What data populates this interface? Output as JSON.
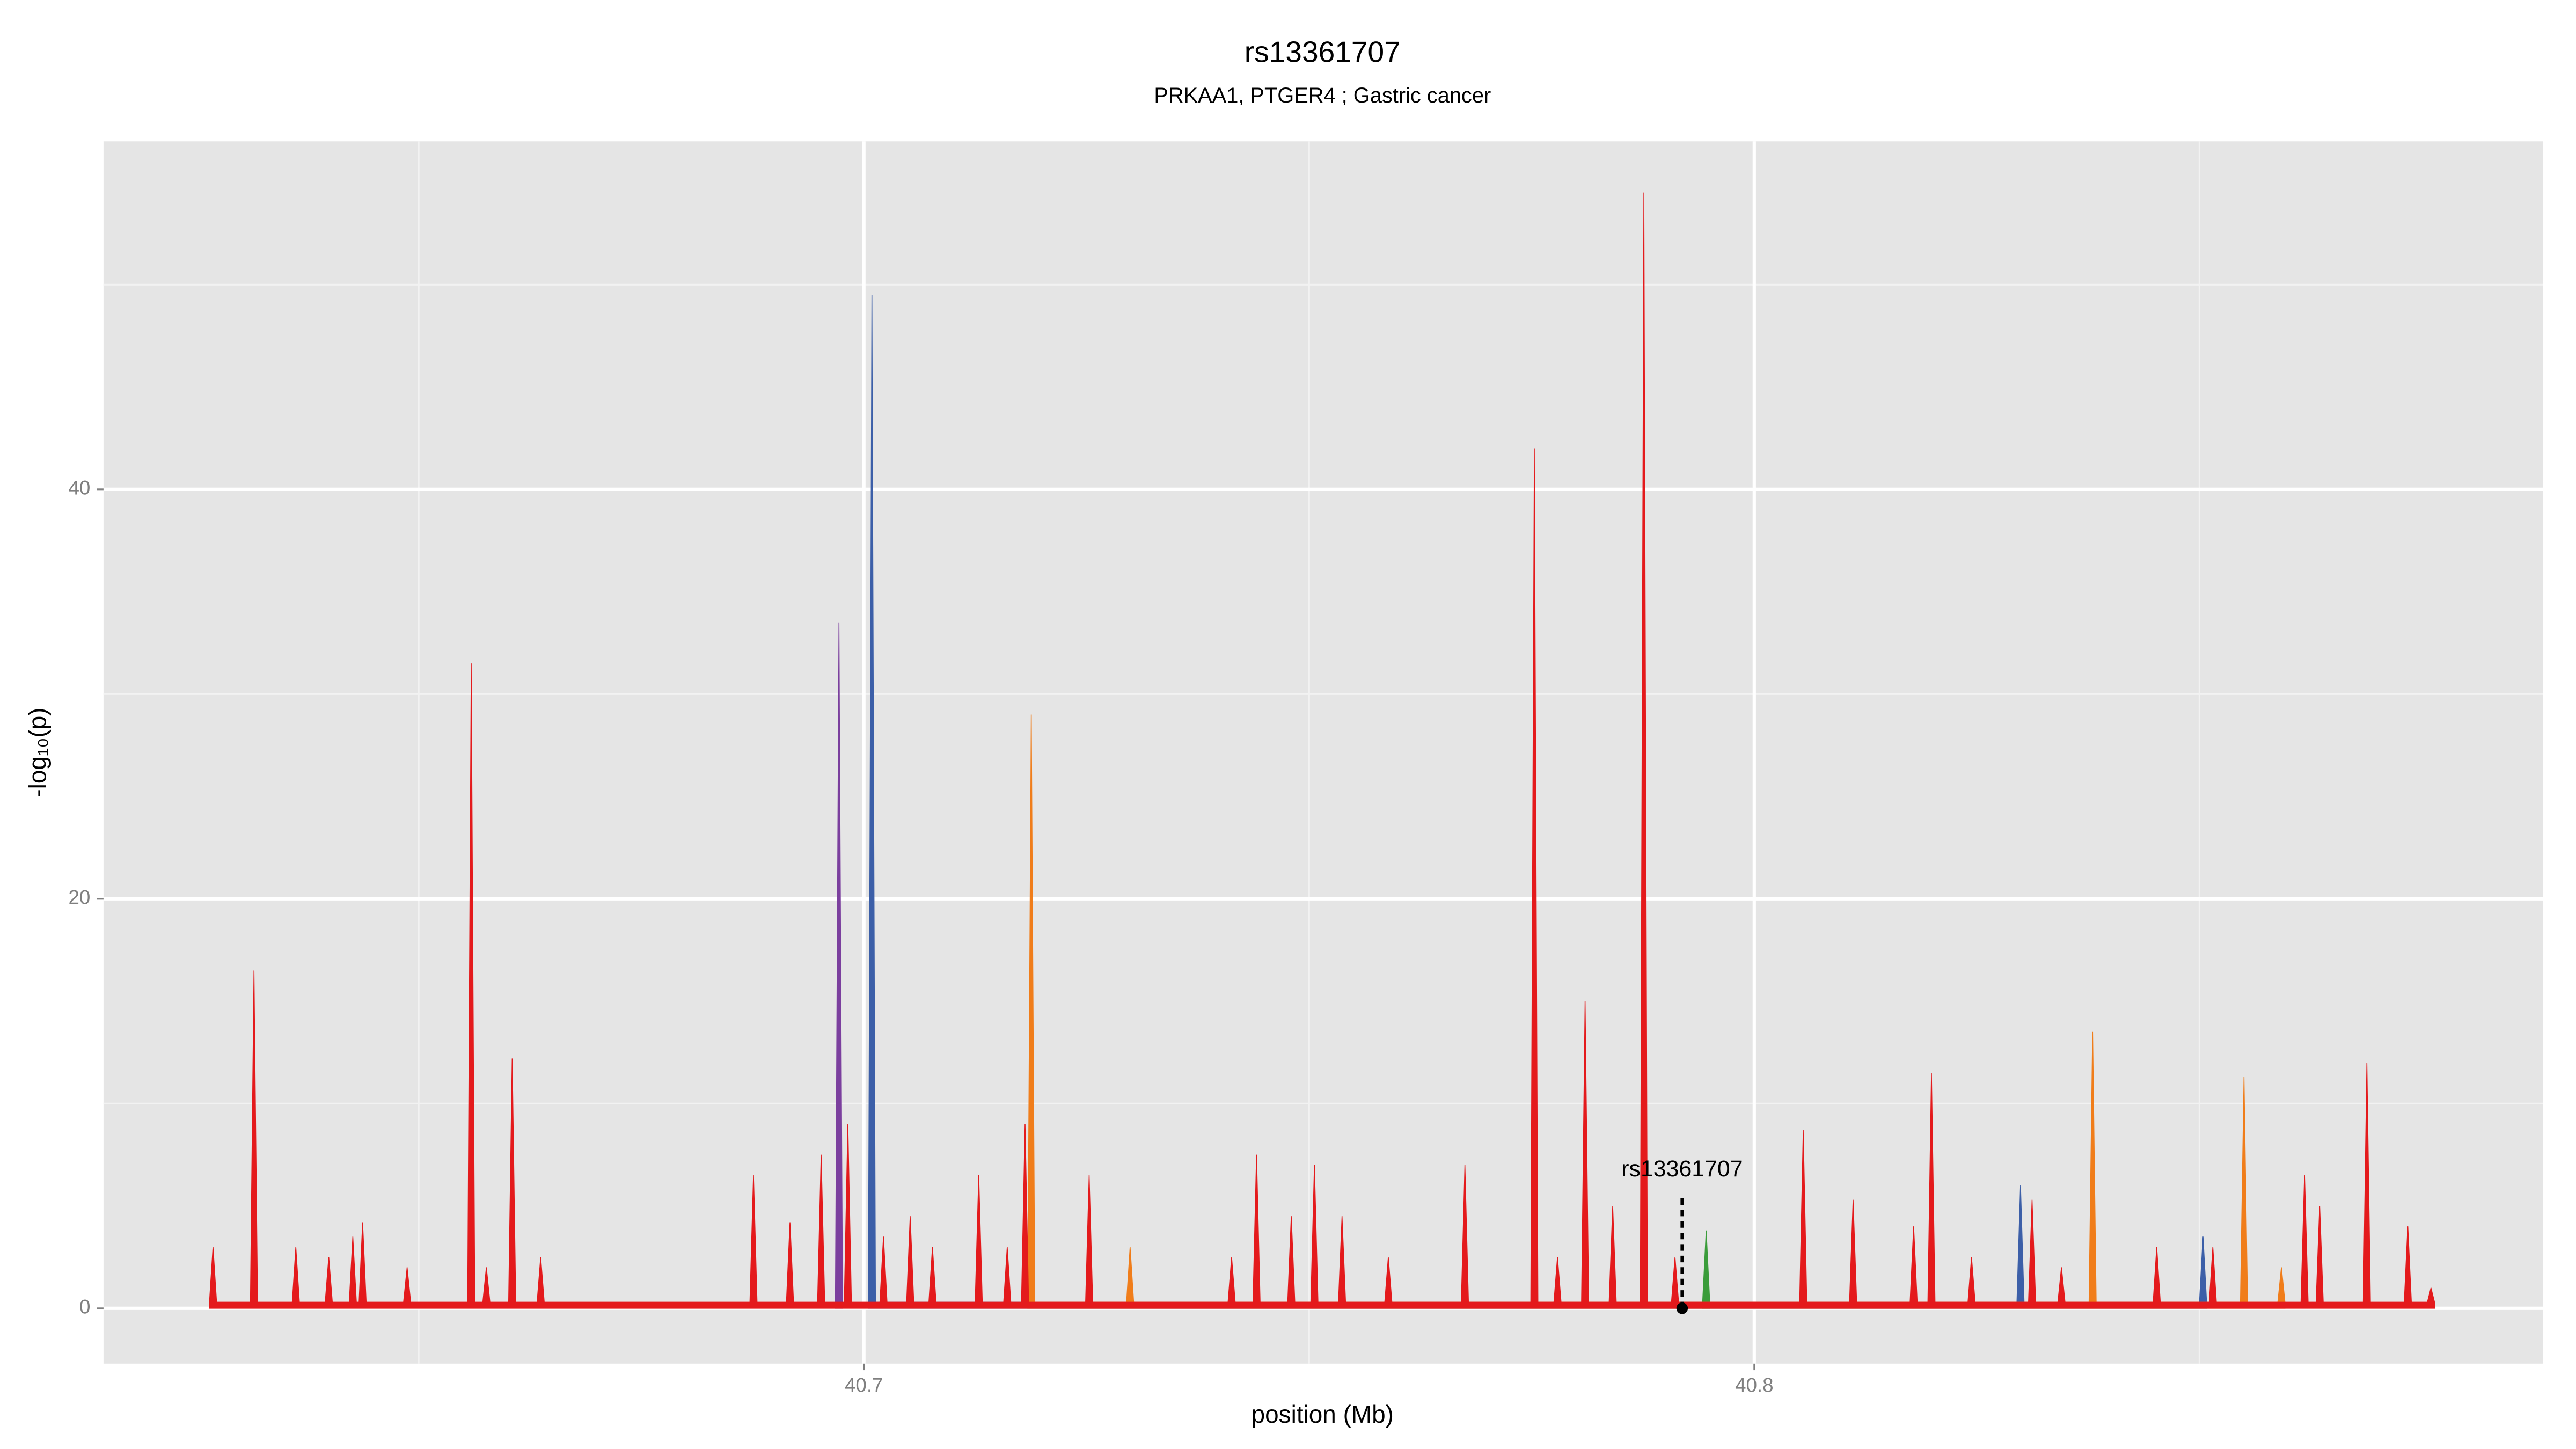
{
  "chart_data": {
    "type": "area",
    "title": "rs13361707",
    "subtitle": "PRKAA1, PTGER4 ; Gastric cancer",
    "x_label": "position (Mb)",
    "y_label": "-log₁₀(p)",
    "xlim": [
      40.6146,
      40.8886
    ],
    "ylim": [
      -2.7,
      57
    ],
    "xticks": [
      40.7,
      40.8
    ],
    "yticks": [
      0,
      20,
      40
    ],
    "x_minor_grid": [
      40.65,
      40.75,
      40.85
    ],
    "y_minor_grid": [
      10,
      30,
      50
    ],
    "grid": true,
    "annotation": {
      "label": "rs13361707",
      "x": 40.7919
    },
    "series": [
      {
        "color": "#7b3f9e",
        "x": [
          40.6968,
          40.6972,
          40.6976
        ],
        "values": [
          0.3,
          33.5,
          0.3
        ]
      },
      {
        "color": "#3c5fa8",
        "x": [
          40.7005,
          40.7009,
          40.7013,
          40.8295,
          40.8299,
          40.8303,
          40.85,
          40.8504,
          40.8508
        ],
        "values": [
          0.3,
          49.5,
          0.3,
          0.3,
          6,
          0.3,
          0.3,
          3.5,
          0.3
        ]
      },
      {
        "color": "#3a9c3a",
        "x": [
          40.7942,
          40.7946,
          40.795
        ],
        "values": [
          0.3,
          3.8,
          0.3
        ]
      },
      {
        "color": "#f07d1a",
        "x": [
          40.7184,
          40.7188,
          40.7192,
          40.7295,
          40.7299,
          40.7303,
          40.8376,
          40.838,
          40.8384,
          40.8546,
          40.855,
          40.8554,
          40.8588,
          40.8592,
          40.8596
        ],
        "values": [
          0.3,
          29,
          0.3,
          0.3,
          3,
          0.3,
          0.3,
          13.5,
          0.3,
          0.3,
          11.3,
          0.3,
          0.3,
          2,
          0.3
        ]
      },
      {
        "color": "#e41a1c",
        "x": [
          40.6265,
          40.6269,
          40.6273,
          40.6311,
          40.6315,
          40.6319,
          40.6358,
          40.6362,
          40.6366,
          40.6395,
          40.6399,
          40.6403,
          40.6422,
          40.6426,
          40.643,
          40.6433,
          40.6437,
          40.6441,
          40.6483,
          40.6487,
          40.6491,
          40.6555,
          40.6559,
          40.6563,
          40.6572,
          40.6576,
          40.658,
          40.6601,
          40.6605,
          40.6609,
          40.6633,
          40.6637,
          40.6641,
          40.6872,
          40.6876,
          40.688,
          40.6913,
          40.6917,
          40.6921,
          40.6948,
          40.6952,
          40.6956,
          40.6978,
          40.6982,
          40.6986,
          40.7018,
          40.7022,
          40.7026,
          40.7048,
          40.7052,
          40.7056,
          40.7073,
          40.7077,
          40.7081,
          40.7125,
          40.7129,
          40.7133,
          40.7157,
          40.7161,
          40.7165,
          40.7177,
          40.7181,
          40.7185,
          40.7249,
          40.7253,
          40.7257,
          40.7409,
          40.7413,
          40.7417,
          40.7437,
          40.7441,
          40.7445,
          40.7476,
          40.748,
          40.7484,
          40.7502,
          40.7506,
          40.751,
          40.7533,
          40.7537,
          40.7541,
          40.7585,
          40.7589,
          40.7593,
          40.7671,
          40.7675,
          40.7679,
          40.7749,
          40.7753,
          40.7757,
          40.7775,
          40.7779,
          40.7783,
          40.7806,
          40.781,
          40.7814,
          40.7837,
          40.7841,
          40.7845,
          40.7872,
          40.7876,
          40.788,
          40.7907,
          40.7911,
          40.7915,
          40.8051,
          40.8055,
          40.8059,
          40.8107,
          40.8111,
          40.8115,
          40.8175,
          40.8179,
          40.8183,
          40.8195,
          40.8199,
          40.8203,
          40.824,
          40.8244,
          40.8248,
          40.8308,
          40.8312,
          40.8316,
          40.8341,
          40.8345,
          40.8349,
          40.8448,
          40.8452,
          40.8456,
          40.8511,
          40.8515,
          40.8519,
          40.8614,
          40.8618,
          40.8622,
          40.8631,
          40.8635,
          40.8639,
          40.8684,
          40.8688,
          40.8692,
          40.873,
          40.8734,
          40.8738,
          40.8756,
          40.876,
          40.8764
        ],
        "values": [
          0.3,
          3,
          0.3,
          0.3,
          16.5,
          0.3,
          0.3,
          3,
          0.3,
          0.3,
          2.5,
          0.3,
          0.3,
          3.5,
          0.3,
          0.3,
          4.2,
          0.3,
          0.3,
          2,
          0.3,
          0.3,
          31.5,
          0.3,
          0.3,
          2,
          0.3,
          0.3,
          12.2,
          0.3,
          0.3,
          2.5,
          0.3,
          0.3,
          6.5,
          0.3,
          0.3,
          4.2,
          0.3,
          0.3,
          7.5,
          0.3,
          0.3,
          9,
          0.3,
          0.3,
          3.5,
          0.3,
          0.3,
          4.5,
          0.3,
          0.3,
          3,
          0.3,
          0.3,
          6.5,
          0.3,
          0.3,
          3,
          0.3,
          0.3,
          9,
          0.3,
          0.3,
          6.5,
          0.3,
          0.3,
          2.5,
          0.3,
          0.3,
          7.5,
          0.3,
          0.3,
          4.5,
          0.3,
          0.3,
          7,
          0.3,
          0.3,
          4.5,
          0.3,
          0.3,
          2.5,
          0.3,
          0.3,
          7,
          0.3,
          0.3,
          42,
          0.3,
          0.3,
          2.5,
          0.3,
          0.3,
          15,
          0.3,
          0.3,
          5,
          0.3,
          0.3,
          54.5,
          0.3,
          0.3,
          2.5,
          0.3,
          0.3,
          8.7,
          0.3,
          0.3,
          5.3,
          0.3,
          0.3,
          4,
          0.3,
          0.3,
          11.5,
          0.3,
          0.3,
          2.5,
          0.3,
          0.3,
          5.3,
          0.3,
          0.3,
          2,
          0.3,
          0.3,
          3,
          0.3,
          0.3,
          3,
          0.3,
          0.3,
          6.5,
          0.3,
          0.3,
          5,
          0.3,
          0.3,
          12,
          0.3,
          0.3,
          4,
          0.3,
          0.3,
          1,
          0.3
        ]
      }
    ]
  }
}
